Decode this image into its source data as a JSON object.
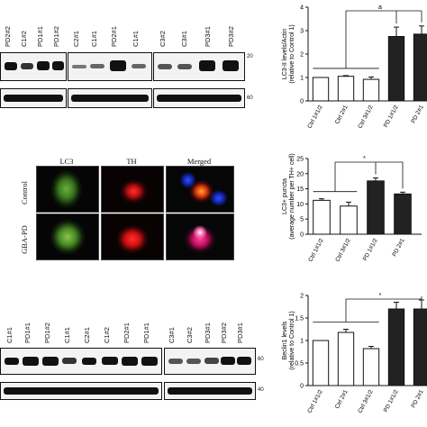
{
  "panelA": {
    "lanes_top": [
      "PD2#2",
      "C1#2",
      "PD1#1",
      "PD1#2",
      "C2#1",
      "C1#1",
      "PD2#1",
      "C1#1",
      "C3#2",
      "C3#1",
      "PD3#1",
      "PD3#2"
    ],
    "markers": [
      "20",
      "60"
    ],
    "chart_data": {
      "type": "bar",
      "ylabel": "LC3-II levels/Actin\n(relative to Control 1)",
      "categories": [
        "Ctrl 1#1/2",
        "Ctrl 2#1",
        "Ctrl 3#1/2",
        "PD 1#1/2",
        "PD 2#1"
      ],
      "values": [
        1.0,
        1.05,
        0.92,
        2.75,
        2.85
      ],
      "errors": [
        0.0,
        0.03,
        0.1,
        0.4,
        0.35
      ],
      "fills": [
        "#ffffff",
        "#ffffff",
        "#ffffff",
        "#222222",
        "#222222"
      ],
      "ylim": [
        0,
        4
      ],
      "yticks": [
        0,
        1,
        2,
        3,
        4
      ],
      "significance": "a"
    }
  },
  "panelB": {
    "columns": [
      "LC3",
      "TH",
      "Merged"
    ],
    "rows": [
      "Control",
      "GBA-PD"
    ],
    "chart_data": {
      "type": "bar",
      "ylabel": "LC3+ puncta\n(average number per TH+ cell)",
      "categories": [
        "Ctrl 1#1/2",
        "Ctrl 3#1/2",
        "PD 1#1/2",
        "PD 2#1"
      ],
      "values": [
        11.2,
        9.3,
        17.6,
        13.3
      ],
      "errors": [
        0.5,
        1.3,
        1.0,
        0.6
      ],
      "fills": [
        "#ffffff",
        "#ffffff",
        "#222222",
        "#222222"
      ],
      "ylim": [
        0,
        25
      ],
      "yticks": [
        0,
        5,
        10,
        15,
        20,
        25
      ],
      "significance": "*"
    }
  },
  "panelC": {
    "lanes_left": [
      "C1#1",
      "PD1#1",
      "PD1#2",
      "C1#1",
      "C2#1",
      "C1#2",
      "PD2#1",
      "PD1#1"
    ],
    "lanes_right": [
      "C3#1",
      "C3#2",
      "PD3#1",
      "PD3#2",
      "PD3#1"
    ],
    "markers": [
      "60",
      "40"
    ],
    "chart_data": {
      "type": "bar",
      "ylabel": "Beclin1 levels\n(relative to Control 1)",
      "categories": [
        "Ctrl 1#1/2",
        "Ctrl 2#1",
        "Ctrl 3#1/2",
        "PD 1#1/2",
        "PD 2#1"
      ],
      "values": [
        1.0,
        1.18,
        0.82,
        1.7,
        1.7
      ],
      "errors": [
        0.0,
        0.07,
        0.05,
        0.15,
        0.2
      ],
      "fills": [
        "#ffffff",
        "#ffffff",
        "#ffffff",
        "#222222",
        "#222222"
      ],
      "ylim": [
        0,
        2.0
      ],
      "yticks": [
        0,
        0.5,
        1.0,
        1.5,
        2.0
      ],
      "significance": "*"
    }
  }
}
